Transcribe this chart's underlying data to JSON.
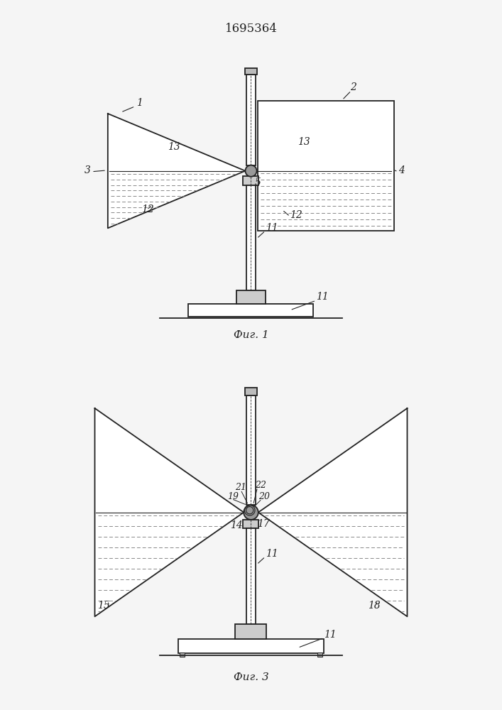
{
  "title": "1695364",
  "fig1_label": "Фиг. 1",
  "fig3_label": "Фиг. 3",
  "bg_color": "#f5f5f5",
  "line_color": "#222222",
  "water_color": "#888888",
  "font_size_title": 12,
  "font_size_label": 11,
  "font_size_num": 10
}
